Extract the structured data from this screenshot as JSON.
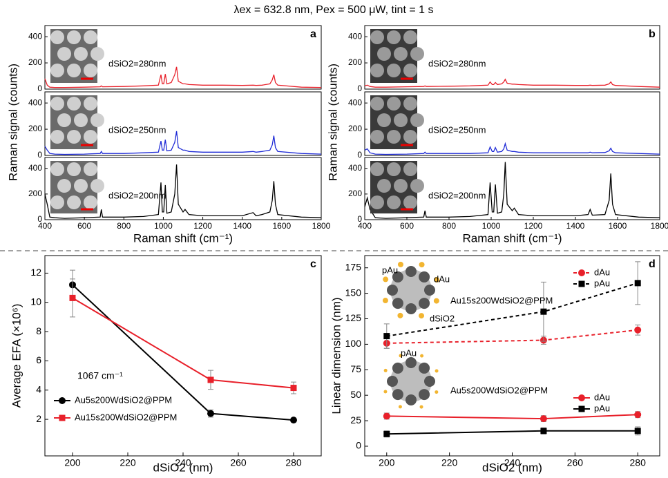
{
  "title": "λex = 632.8 nm, Pex = 500 μW, tint = 1 s",
  "chart_data": [
    {
      "type": "spectra",
      "label": "a",
      "xlabel": "Raman shift (cm⁻¹)",
      "ylabel": "Raman signal (counts)",
      "x": [
        400,
        412,
        425,
        450,
        500,
        600,
        680,
        686,
        692,
        800,
        900,
        975,
        988,
        995,
        1002,
        1010,
        1018,
        1040,
        1058,
        1067,
        1076,
        1100,
        1110,
        1130,
        1200,
        1300,
        1400,
        1455,
        1470,
        1500,
        1540,
        1552,
        1560,
        1568,
        1580,
        1700,
        1800
      ],
      "xlim": [
        400,
        1800
      ],
      "xticks": [
        400,
        600,
        800,
        1000,
        1200,
        1400,
        1600,
        1800
      ],
      "ylim": [
        0,
        485
      ],
      "yticks": [
        0,
        200,
        400
      ],
      "series": [
        {
          "name": "dSiO2=280nm",
          "color": "#e8202a",
          "values": [
            80,
            30,
            15,
            12,
            12,
            15,
            18,
            25,
            18,
            20,
            25,
            30,
            110,
            40,
            40,
            115,
            40,
            50,
            110,
            170,
            60,
            40,
            40,
            35,
            30,
            30,
            28,
            30,
            28,
            30,
            40,
            70,
            110,
            50,
            30,
            15,
            12
          ]
        },
        {
          "name": "dSiO2=250nm",
          "color": "#1f2bd6",
          "values": [
            70,
            40,
            15,
            10,
            8,
            10,
            15,
            30,
            15,
            15,
            20,
            25,
            110,
            40,
            40,
            120,
            35,
            40,
            100,
            185,
            60,
            40,
            40,
            30,
            25,
            25,
            25,
            30,
            25,
            30,
            40,
            80,
            150,
            60,
            30,
            15,
            10
          ]
        },
        {
          "name": "dSiO2=200nm",
          "color": "#000000",
          "values": [
            200,
            120,
            20,
            15,
            10,
            15,
            20,
            80,
            20,
            20,
            25,
            40,
            290,
            60,
            60,
            270,
            50,
            60,
            200,
            430,
            120,
            60,
            80,
            40,
            30,
            30,
            30,
            55,
            30,
            40,
            60,
            150,
            300,
            120,
            40,
            20,
            15
          ]
        }
      ]
    },
    {
      "type": "spectra",
      "label": "b",
      "xlabel": "Raman shift (cm⁻¹)",
      "ylabel": "Raman signal (counts)",
      "x": [
        400,
        412,
        425,
        450,
        500,
        600,
        680,
        686,
        692,
        800,
        900,
        985,
        995,
        1005,
        1012,
        1020,
        1030,
        1050,
        1060,
        1067,
        1076,
        1100,
        1110,
        1130,
        1200,
        1300,
        1400,
        1460,
        1470,
        1480,
        1540,
        1560,
        1568,
        1576,
        1590,
        1700,
        1800
      ],
      "xlim": [
        400,
        1800
      ],
      "xticks": [
        400,
        600,
        800,
        1000,
        1200,
        1400,
        1600,
        1800
      ],
      "ylim": [
        0,
        485
      ],
      "yticks": [
        0,
        200,
        400
      ],
      "series": [
        {
          "name": "dSiO2=280nm",
          "color": "#e8202a",
          "values": [
            25,
            30,
            20,
            15,
            15,
            18,
            20,
            25,
            20,
            22,
            25,
            30,
            55,
            35,
            35,
            50,
            35,
            40,
            55,
            75,
            45,
            38,
            38,
            35,
            30,
            30,
            28,
            28,
            30,
            28,
            30,
            40,
            55,
            35,
            28,
            20,
            15
          ]
        },
        {
          "name": "dSiO2=250nm",
          "color": "#1f2bd6",
          "values": [
            40,
            50,
            20,
            10,
            8,
            10,
            15,
            25,
            15,
            15,
            15,
            20,
            65,
            30,
            30,
            60,
            25,
            30,
            50,
            90,
            40,
            30,
            30,
            25,
            20,
            20,
            20,
            20,
            25,
            20,
            22,
            35,
            55,
            30,
            20,
            15,
            10
          ]
        },
        {
          "name": "dSiO2=200nm",
          "color": "#000000",
          "values": [
            100,
            170,
            80,
            15,
            10,
            15,
            20,
            70,
            20,
            20,
            25,
            40,
            290,
            60,
            60,
            275,
            50,
            60,
            200,
            450,
            120,
            70,
            90,
            40,
            30,
            30,
            30,
            40,
            80,
            35,
            40,
            150,
            360,
            120,
            40,
            20,
            15
          ]
        }
      ]
    },
    {
      "type": "line",
      "label": "c",
      "xlabel": "dSiO2 (nm)",
      "ylabel": "Average EFA (×10⁶)",
      "x": [
        200,
        250,
        280
      ],
      "xlim": [
        190,
        290
      ],
      "xticks": [
        200,
        220,
        240,
        260,
        280
      ],
      "ylim": [
        -0.5,
        13.2
      ],
      "yticks": [
        2,
        4,
        6,
        8,
        10,
        12
      ],
      "legend": "lower left",
      "annotations": [
        "1067 cm⁻¹"
      ],
      "series": [
        {
          "name": "Au5s200WdSiO2@PPM",
          "color": "#000000",
          "marker": "circle",
          "linestyle": "solid",
          "values": [
            11.2,
            2.4,
            1.95
          ],
          "errors": [
            1.0,
            0.25,
            0.1
          ]
        },
        {
          "name": "Au15s200WdSiO2@PPM",
          "color": "#e8202a",
          "marker": "square",
          "linestyle": "solid",
          "values": [
            10.3,
            4.7,
            4.15
          ],
          "errors": [
            1.3,
            0.65,
            0.4
          ]
        }
      ]
    },
    {
      "type": "line",
      "label": "d",
      "xlabel": "dSiO2 (nm)",
      "ylabel": "Linear dimension (nm)",
      "x": [
        200,
        250,
        280
      ],
      "xlim": [
        193,
        287
      ],
      "xticks": [
        200,
        220,
        240,
        260,
        280
      ],
      "ylim": [
        -9.5,
        187
      ],
      "yticks": [
        0,
        25,
        50,
        75,
        100,
        125,
        150,
        175
      ],
      "legend": "upper right",
      "annotations": [
        "pAu",
        "dAu",
        "Au15s200WdSiO2@PPM",
        "dSiO2",
        "pAu",
        "Au5s200WdSiO2@PPM"
      ],
      "series": [
        {
          "name": "dAu",
          "color": "#e8202a",
          "marker": "circle",
          "linestyle": "dashed",
          "values": [
            101,
            104,
            114
          ],
          "errors": [
            5,
            4,
            5
          ]
        },
        {
          "name": "pAu",
          "color": "#000000",
          "marker": "square",
          "linestyle": "dashed",
          "values": [
            108,
            132,
            160
          ],
          "errors": [
            12,
            29,
            21
          ]
        },
        {
          "name": "dAu",
          "color": "#e8202a",
          "marker": "circle",
          "linestyle": "solid",
          "values": [
            29.5,
            27,
            31
          ],
          "errors": [
            3,
            3,
            3
          ]
        },
        {
          "name": "pAu",
          "color": "#000000",
          "marker": "square",
          "linestyle": "solid",
          "values": [
            12,
            15,
            15
          ],
          "errors": [
            3,
            3,
            4
          ]
        }
      ]
    }
  ]
}
